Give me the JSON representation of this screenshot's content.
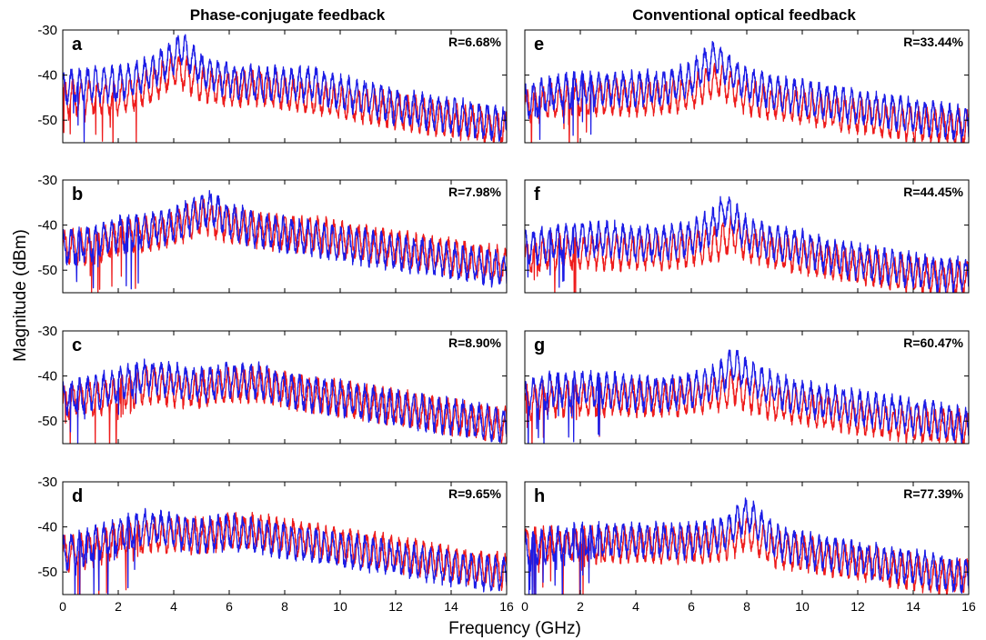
{
  "figure": {
    "columns": [
      {
        "title": "Phase-conjugate feedback"
      },
      {
        "title": "Conventional optical feedback"
      }
    ],
    "xlabel": "Frequency (GHz)",
    "ylabel": "Magnitude (dBm)"
  },
  "colors": {
    "series_a": "#ee1c1c",
    "series_b": "#1c1ce6",
    "axis": "#000000"
  },
  "chart_data": [
    {
      "panel": "a",
      "column": 0,
      "row": 0,
      "type": "line",
      "annotation": "R=6.68%",
      "xlim": [
        0,
        16
      ],
      "ylim": [
        -55,
        -30
      ],
      "xticks": [
        0,
        2,
        4,
        6,
        8,
        10,
        12,
        14,
        16
      ],
      "yticks": [
        -30,
        -40,
        -50
      ],
      "series": [
        {
          "color": "#ee1c1c",
          "x": [
            0,
            1,
            2,
            3,
            3.5,
            4,
            4.5,
            5,
            6,
            7,
            8,
            9,
            10,
            11,
            12,
            13,
            14,
            15,
            16
          ],
          "y": [
            -45,
            -45,
            -45,
            -43,
            -41,
            -39,
            -40,
            -42,
            -43,
            -43,
            -44,
            -45,
            -46,
            -47,
            -48,
            -49,
            -50,
            -51,
            -52
          ]
        },
        {
          "color": "#1c1ce6",
          "x": [
            0,
            1,
            2,
            3,
            3.5,
            4,
            4.3,
            4.6,
            5,
            6,
            7,
            8,
            9,
            10,
            11,
            12,
            13,
            14,
            15,
            16
          ],
          "y": [
            -43,
            -42,
            -42,
            -40,
            -38,
            -36,
            -34,
            -36,
            -39,
            -41,
            -42,
            -42,
            -42,
            -44,
            -45,
            -47,
            -48,
            -49,
            -50,
            -51
          ]
        }
      ]
    },
    {
      "panel": "b",
      "column": 0,
      "row": 1,
      "type": "line",
      "annotation": "R=7.98%",
      "xlim": [
        0,
        16
      ],
      "ylim": [
        -55,
        -30
      ],
      "xticks": [
        0,
        2,
        4,
        6,
        8,
        10,
        12,
        14,
        16
      ],
      "yticks": [
        -30,
        -40,
        -50
      ],
      "series": [
        {
          "color": "#ee1c1c",
          "x": [
            0,
            1,
            2,
            3,
            4,
            5,
            5.5,
            6,
            7,
            8,
            9,
            10,
            11,
            12,
            13,
            14,
            15,
            16
          ],
          "y": [
            -45,
            -45,
            -43,
            -42,
            -41,
            -38,
            -39,
            -40,
            -41,
            -42,
            -42,
            -43,
            -44,
            -45,
            -46,
            -47,
            -48,
            -49
          ]
        },
        {
          "color": "#1c1ce6",
          "x": [
            0,
            1,
            2,
            3,
            4,
            5,
            5.3,
            6,
            7,
            8,
            9,
            10,
            11,
            12,
            13,
            14,
            15,
            16
          ],
          "y": [
            -45,
            -44,
            -42,
            -41,
            -40,
            -37,
            -36,
            -39,
            -41,
            -42,
            -43,
            -44,
            -45,
            -46,
            -47,
            -48,
            -49,
            -50
          ]
        }
      ]
    },
    {
      "panel": "c",
      "column": 0,
      "row": 2,
      "type": "line",
      "annotation": "R=8.90%",
      "xlim": [
        0,
        16
      ],
      "ylim": [
        -55,
        -30
      ],
      "xticks": [
        0,
        2,
        4,
        6,
        8,
        10,
        12,
        14,
        16
      ],
      "yticks": [
        -30,
        -40,
        -50
      ],
      "series": [
        {
          "color": "#ee1c1c",
          "x": [
            0,
            1,
            2,
            3,
            4,
            5,
            6,
            7,
            8,
            9,
            10,
            11,
            12,
            13,
            14,
            15,
            16
          ],
          "y": [
            -46,
            -45,
            -44,
            -42,
            -43,
            -43,
            -42,
            -42,
            -43,
            -44,
            -45,
            -46,
            -47,
            -48,
            -49,
            -50,
            -51
          ]
        },
        {
          "color": "#1c1ce6",
          "x": [
            0,
            1,
            2,
            3,
            4,
            5,
            6,
            7,
            8,
            9,
            10,
            11,
            12,
            13,
            14,
            15,
            16
          ],
          "y": [
            -45,
            -44,
            -42,
            -40,
            -41,
            -42,
            -41,
            -41,
            -43,
            -44,
            -45,
            -46,
            -47,
            -48,
            -49,
            -50,
            -51
          ]
        }
      ]
    },
    {
      "panel": "d",
      "column": 0,
      "row": 3,
      "type": "line",
      "annotation": "R=9.65%",
      "xlim": [
        0,
        16
      ],
      "ylim": [
        -55,
        -30
      ],
      "xticks": [
        0,
        2,
        4,
        6,
        8,
        10,
        12,
        14,
        16
      ],
      "yticks": [
        -30,
        -40,
        -50
      ],
      "series": [
        {
          "color": "#ee1c1c",
          "x": [
            0,
            1,
            2,
            3,
            4,
            5,
            6,
            7,
            8,
            9,
            10,
            11,
            12,
            13,
            14,
            15,
            16
          ],
          "y": [
            -46,
            -45,
            -43,
            -42,
            -42,
            -42,
            -41,
            -41,
            -42,
            -43,
            -44,
            -45,
            -46,
            -47,
            -48,
            -49,
            -50
          ]
        },
        {
          "color": "#1c1ce6",
          "x": [
            0,
            1,
            2,
            3,
            4,
            5,
            6,
            7,
            8,
            9,
            10,
            11,
            12,
            13,
            14,
            15,
            16
          ],
          "y": [
            -46,
            -44,
            -42,
            -40,
            -41,
            -42,
            -41,
            -42,
            -43,
            -44,
            -45,
            -46,
            -47,
            -48,
            -49,
            -50,
            -51
          ]
        }
      ]
    },
    {
      "panel": "e",
      "column": 1,
      "row": 0,
      "type": "line",
      "annotation": "R=33.44%",
      "xlim": [
        0,
        16
      ],
      "ylim": [
        -55,
        -30
      ],
      "xticks": [
        0,
        2,
        4,
        6,
        8,
        10,
        12,
        14,
        16
      ],
      "yticks": [
        -30,
        -40,
        -50
      ],
      "series": [
        {
          "color": "#ee1c1c",
          "x": [
            0,
            1,
            2,
            3,
            4,
            5,
            6,
            6.5,
            7,
            7.5,
            8,
            9,
            10,
            11,
            12,
            13,
            14,
            15,
            16
          ],
          "y": [
            -47,
            -46,
            -45,
            -45,
            -45,
            -45,
            -44,
            -42,
            -41,
            -43,
            -45,
            -46,
            -47,
            -48,
            -49,
            -50,
            -51,
            -51,
            -52
          ]
        },
        {
          "color": "#1c1ce6",
          "x": [
            0,
            1,
            2,
            3,
            4,
            5,
            6,
            6.5,
            6.9,
            7.3,
            8,
            9,
            10,
            11,
            12,
            13,
            14,
            15,
            16
          ],
          "y": [
            -46,
            -44,
            -43,
            -43,
            -43,
            -43,
            -41,
            -38,
            -36,
            -39,
            -42,
            -44,
            -45,
            -46,
            -47,
            -48,
            -49,
            -50,
            -51
          ]
        }
      ]
    },
    {
      "panel": "f",
      "column": 1,
      "row": 1,
      "type": "line",
      "annotation": "R=44.45%",
      "xlim": [
        0,
        16
      ],
      "ylim": [
        -55,
        -30
      ],
      "xticks": [
        0,
        2,
        4,
        6,
        8,
        10,
        12,
        14,
        16
      ],
      "yticks": [
        -30,
        -40,
        -50
      ],
      "series": [
        {
          "color": "#ee1c1c",
          "x": [
            0,
            1,
            2,
            3,
            4,
            5,
            6,
            7,
            7.5,
            8,
            9,
            10,
            11,
            12,
            13,
            14,
            15,
            16
          ],
          "y": [
            -47,
            -46,
            -46,
            -46,
            -46,
            -46,
            -45,
            -44,
            -42,
            -44,
            -46,
            -47,
            -48,
            -49,
            -50,
            -51,
            -52,
            -52
          ]
        },
        {
          "color": "#1c1ce6",
          "x": [
            0,
            1,
            2,
            3,
            4,
            5,
            6,
            6.8,
            7.2,
            7.6,
            8,
            9,
            10,
            11,
            12,
            13,
            14,
            15,
            16
          ],
          "y": [
            -45,
            -44,
            -43,
            -43,
            -44,
            -44,
            -43,
            -40,
            -36,
            -39,
            -42,
            -44,
            -45,
            -47,
            -48,
            -49,
            -50,
            -51,
            -51
          ]
        }
      ]
    },
    {
      "panel": "g",
      "column": 1,
      "row": 2,
      "type": "line",
      "annotation": "R=60.47%",
      "xlim": [
        0,
        16
      ],
      "ylim": [
        -55,
        -30
      ],
      "xticks": [
        0,
        2,
        4,
        6,
        8,
        10,
        12,
        14,
        16
      ],
      "yticks": [
        -30,
        -40,
        -50
      ],
      "series": [
        {
          "color": "#ee1c1c",
          "x": [
            0,
            1,
            2,
            3,
            4,
            5,
            6,
            7,
            7.5,
            8,
            9,
            10,
            11,
            12,
            13,
            14,
            15,
            16
          ],
          "y": [
            -46,
            -45,
            -45,
            -45,
            -45,
            -45,
            -45,
            -44,
            -42,
            -44,
            -46,
            -47,
            -48,
            -49,
            -50,
            -51,
            -51,
            -52
          ]
        },
        {
          "color": "#1c1ce6",
          "x": [
            0,
            1,
            2,
            3,
            4,
            5,
            6,
            7,
            7.5,
            8,
            9,
            10,
            11,
            12,
            13,
            14,
            15,
            16
          ],
          "y": [
            -45,
            -43,
            -43,
            -43,
            -44,
            -44,
            -43,
            -41,
            -37,
            -40,
            -43,
            -45,
            -46,
            -47,
            -48,
            -49,
            -50,
            -51
          ]
        }
      ]
    },
    {
      "panel": "h",
      "column": 1,
      "row": 3,
      "type": "line",
      "annotation": "R=77.39%",
      "xlim": [
        0,
        16
      ],
      "ylim": [
        -55,
        -30
      ],
      "xticks": [
        0,
        2,
        4,
        6,
        8,
        10,
        12,
        14,
        16
      ],
      "yticks": [
        -30,
        -40,
        -50
      ],
      "series": [
        {
          "color": "#ee1c1c",
          "x": [
            0,
            1,
            2,
            3,
            4,
            5,
            6,
            7,
            7.5,
            8,
            8.5,
            9,
            10,
            11,
            12,
            13,
            14,
            15,
            16
          ],
          "y": [
            -44,
            -44,
            -44,
            -44,
            -44,
            -44,
            -44,
            -44,
            -43,
            -41,
            -43,
            -45,
            -46,
            -47,
            -48,
            -49,
            -50,
            -51,
            -51
          ]
        },
        {
          "color": "#1c1ce6",
          "x": [
            0,
            1,
            2,
            3,
            4,
            5,
            6,
            7,
            7.5,
            8,
            8.5,
            9,
            10,
            11,
            12,
            13,
            14,
            15,
            16
          ],
          "y": [
            -45,
            -44,
            -43,
            -43,
            -43,
            -43,
            -43,
            -42,
            -40,
            -37,
            -40,
            -43,
            -45,
            -46,
            -47,
            -48,
            -49,
            -50,
            -51
          ]
        }
      ]
    }
  ]
}
